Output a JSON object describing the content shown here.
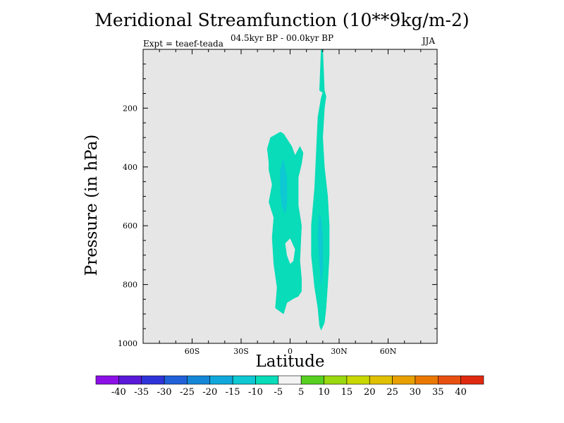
{
  "chart_data": {
    "type": "contour",
    "title": "Meridional Streamfunction (10**9kg/m-2)",
    "subtitle": "04.5kyr BP - 00.0kyr BP",
    "experiment": "Expt = teaef-teada",
    "season": "JJA",
    "xlabel": "Latitude",
    "ylabel": "Pressure (in hPa)",
    "xlim": [
      -90,
      90
    ],
    "ylim": [
      1000,
      0
    ],
    "background_color": "#e6e6e6",
    "x_ticks": [
      {
        "value": -60,
        "label": "60S"
      },
      {
        "value": -30,
        "label": "30S"
      },
      {
        "value": 0,
        "label": "0"
      },
      {
        "value": 30,
        "label": "30N"
      },
      {
        "value": 60,
        "label": "60N"
      }
    ],
    "y_ticks": [
      {
        "value": 200,
        "label": "200"
      },
      {
        "value": 400,
        "label": "400"
      },
      {
        "value": 600,
        "label": "600"
      },
      {
        "value": 800,
        "label": "800"
      },
      {
        "value": 1000,
        "label": "1000"
      }
    ],
    "colorbar": {
      "labels": [
        "-40",
        "-35",
        "-30",
        "-25",
        "-20",
        "-15",
        "-10",
        "-5",
        "5",
        "10",
        "15",
        "20",
        "25",
        "30",
        "35",
        "40"
      ],
      "colors": [
        "#8c10e6",
        "#5a1ad8",
        "#2f34d8",
        "#2060d8",
        "#1486d8",
        "#10a8dc",
        "#0ec8d4",
        "#08dcb8",
        "#f2f2f2",
        "#58d020",
        "#9ad810",
        "#c8d800",
        "#e0c000",
        "#e8a000",
        "#ea7800",
        "#e85010",
        "#e02a10"
      ]
    },
    "contour_regions": [
      {
        "level": "-10 to -5",
        "color": "#08dcb8",
        "polygon": [
          [
            -4,
            287
          ],
          [
            -6,
            281
          ],
          [
            -12,
            300
          ],
          [
            -14,
            338
          ],
          [
            -13,
            386
          ],
          [
            -13,
            410
          ],
          [
            -11,
            460
          ],
          [
            -13,
            520
          ],
          [
            -10,
            572
          ],
          [
            -11,
            640
          ],
          [
            -10,
            730
          ],
          [
            -8,
            810
          ],
          [
            -9,
            880
          ],
          [
            -4,
            900
          ],
          [
            -2,
            862
          ],
          [
            2,
            848
          ],
          [
            5,
            840
          ],
          [
            7,
            823
          ],
          [
            7,
            781
          ],
          [
            6,
            719
          ],
          [
            7,
            600
          ],
          [
            5,
            530
          ],
          [
            5,
            436
          ],
          [
            7,
            390
          ],
          [
            8,
            352
          ],
          [
            6,
            330
          ],
          [
            3,
            361
          ],
          [
            1,
            330
          ]
        ]
      },
      {
        "level": "-15 to -10",
        "color": "#0ec8d4",
        "polygon": [
          [
            -4,
            375
          ],
          [
            -6,
            410
          ],
          [
            -6,
            480
          ],
          [
            -5,
            530
          ],
          [
            -3,
            560
          ],
          [
            -2,
            520
          ],
          [
            -2,
            440
          ]
        ]
      },
      {
        "level": "-10 to -5",
        "color": "#08dcb8",
        "polygon": [
          [
            19,
            0
          ],
          [
            18,
            140
          ],
          [
            20,
            147
          ],
          [
            19,
            165
          ],
          [
            17,
            230
          ],
          [
            16,
            350
          ],
          [
            15,
            470
          ],
          [
            13,
            600
          ],
          [
            13,
            700
          ],
          [
            15,
            810
          ],
          [
            17,
            880
          ],
          [
            18,
            940
          ],
          [
            19,
            955
          ],
          [
            21,
            930
          ],
          [
            22,
            880
          ],
          [
            23,
            800
          ],
          [
            24,
            700
          ],
          [
            24,
            600
          ],
          [
            23,
            500
          ],
          [
            21,
            400
          ],
          [
            20,
            300
          ],
          [
            21,
            200
          ],
          [
            22,
            160
          ],
          [
            21,
            140
          ],
          [
            20,
            0
          ]
        ]
      },
      {
        "level": "-15 to -10",
        "color": "#0ec8d4",
        "polygon": [
          [
            18,
            560
          ],
          [
            17,
            630
          ],
          [
            18,
            720
          ],
          [
            19,
            800
          ],
          [
            20,
            740
          ],
          [
            20,
            640
          ],
          [
            19,
            580
          ]
        ]
      }
    ],
    "contour_holes": [
      {
        "level": "-5 to 5",
        "color": "#e6e6e6",
        "polygon": [
          [
            0,
            643
          ],
          [
            -3,
            660
          ],
          [
            -2,
            700
          ],
          [
            0,
            730
          ],
          [
            2,
            720
          ],
          [
            3,
            680
          ]
        ]
      }
    ]
  }
}
